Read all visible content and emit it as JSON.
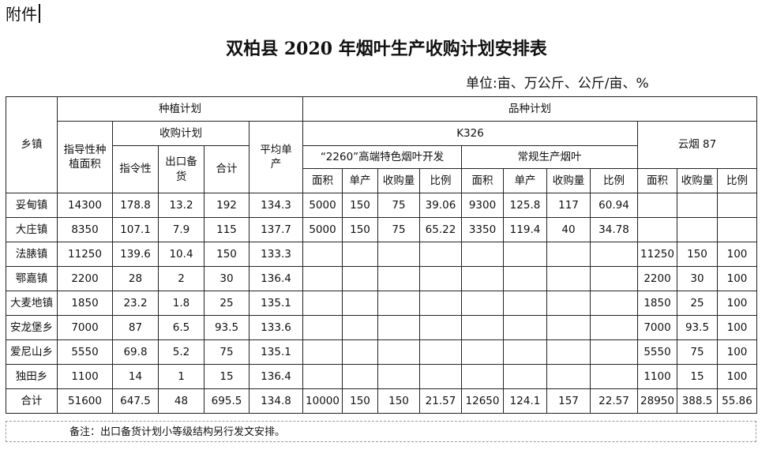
{
  "attachment_label": "附件",
  "title": "双柏县 2020 年烟叶生产收购计划安排表",
  "unit_line": "单位:亩、万公斤、公斤/亩、%",
  "headers": {
    "township": "乡镇",
    "planting_plan": "种植计划",
    "variety_plan": "品种计划",
    "guide_area": "指导性种植面积",
    "purchase_plan": "收购计划",
    "directive": "指令性",
    "export_reserve": "出口备货",
    "subtotal": "合计",
    "avg_yield": "平均单产",
    "k326": "K326",
    "high_end": "“2260”高端特色烟叶开发",
    "regular": "常规生产烟叶",
    "yunyan87": "云烟 87",
    "area": "面积",
    "yield": "单产",
    "purchase": "收购量",
    "ratio": "比例"
  },
  "rows": [
    {
      "town": "妥甸镇",
      "c": [
        "14300",
        "178.8",
        "13.2",
        "192",
        "134.3",
        "5000",
        "150",
        "75",
        "39.06",
        "9300",
        "125.8",
        "117",
        "60.94",
        "",
        "",
        ""
      ]
    },
    {
      "town": "大庄镇",
      "c": [
        "8350",
        "107.1",
        "7.9",
        "115",
        "137.7",
        "5000",
        "150",
        "75",
        "65.22",
        "3350",
        "119.4",
        "40",
        "34.78",
        "",
        "",
        ""
      ]
    },
    {
      "town": "法脿镇",
      "c": [
        "11250",
        "139.6",
        "10.4",
        "150",
        "133.3",
        "",
        "",
        "",
        "",
        "",
        "",
        "",
        "",
        "11250",
        "150",
        "100"
      ]
    },
    {
      "town": "鄂嘉镇",
      "c": [
        "2200",
        "28",
        "2",
        "30",
        "136.4",
        "",
        "",
        "",
        "",
        "",
        "",
        "",
        "",
        "2200",
        "30",
        "100"
      ]
    },
    {
      "town": "大麦地镇",
      "c": [
        "1850",
        "23.2",
        "1.8",
        "25",
        "135.1",
        "",
        "",
        "",
        "",
        "",
        "",
        "",
        "",
        "1850",
        "25",
        "100"
      ]
    },
    {
      "town": "安龙堡乡",
      "c": [
        "7000",
        "87",
        "6.5",
        "93.5",
        "133.6",
        "",
        "",
        "",
        "",
        "",
        "",
        "",
        "",
        "7000",
        "93.5",
        "100"
      ]
    },
    {
      "town": "爱尼山乡",
      "c": [
        "5550",
        "69.8",
        "5.2",
        "75",
        "135.1",
        "",
        "",
        "",
        "",
        "",
        "",
        "",
        "",
        "5550",
        "75",
        "100"
      ]
    },
    {
      "town": "独田乡",
      "c": [
        "1100",
        "14",
        "1",
        "15",
        "136.4",
        "",
        "",
        "",
        "",
        "",
        "",
        "",
        "",
        "1100",
        "15",
        "100"
      ]
    },
    {
      "town": "合计",
      "c": [
        "51600",
        "647.5",
        "48",
        "695.5",
        "134.8",
        "10000",
        "150",
        "150",
        "21.57",
        "12650",
        "124.1",
        "157",
        "22.57",
        "28950",
        "388.5",
        "55.86"
      ]
    }
  ],
  "note": "备注：出口备货计划小等级结构另行发文安排。"
}
